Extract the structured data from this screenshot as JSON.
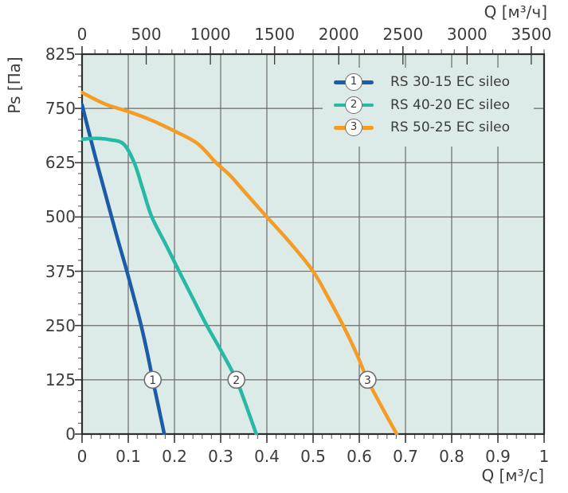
{
  "colors": {
    "plot_background": "#dcebe8",
    "gridline": "#6b6b6b",
    "axis_border": "#2e2e2e",
    "major_tick": "#3a3a3a",
    "minor_tick": "#5f5f5f",
    "text": "#3c3c3b",
    "marker_circle_border": "#6f6f6f",
    "series_blue": "#1b5ca8",
    "series_teal": "#26b9a6",
    "series_orange": "#f59c24"
  },
  "axis_titles": {
    "top": "Q [м³/ч]",
    "bottom": "Q [м³/с]",
    "left": "Ps [Па]"
  },
  "legend": {
    "items": [
      {
        "num": "1",
        "label": "RS 30-15 EC sileo",
        "color": "#1b5ca8"
      },
      {
        "num": "2",
        "label": "RS 40-20 EC sileo",
        "color": "#26b9a6"
      },
      {
        "num": "3",
        "label": "RS 50-25 EC sileo",
        "color": "#f59c24"
      }
    ]
  },
  "chart_data": {
    "type": "line",
    "title": "",
    "xlabel": "Q [м³/с]",
    "xlabel_top": "Q [м³/ч]",
    "ylabel": "Ps [Па]",
    "xlim": [
      0,
      1
    ],
    "xlim_top": [
      0,
      3600
    ],
    "ylim": [
      0,
      825
    ],
    "grid": true,
    "legend_position": "top-right",
    "x_ticks_bottom": [
      "0",
      "0.1",
      "0.2",
      "0.3",
      "0.4",
      "0.5",
      "0.6",
      "0.7",
      "0.8",
      "0.9",
      "1"
    ],
    "x_ticks_top": [
      "0",
      "500",
      "1000",
      "1500",
      "2000",
      "2500",
      "3000",
      "3500"
    ],
    "y_ticks": [
      "825",
      "750",
      "625",
      "500",
      "375",
      "250",
      "125",
      "0"
    ],
    "series": [
      {
        "name": "RS 30-15 EC sileo",
        "curve_number": "1",
        "color": "#1b5ca8",
        "points": [
          [
            0,
            755
          ],
          [
            0.015,
            695
          ],
          [
            0.032,
            625
          ],
          [
            0.048,
            563
          ],
          [
            0.064,
            500
          ],
          [
            0.08,
            438
          ],
          [
            0.097,
            375
          ],
          [
            0.113,
            312
          ],
          [
            0.128,
            250
          ],
          [
            0.141,
            188
          ],
          [
            0.153,
            125
          ],
          [
            0.166,
            60
          ],
          [
            0.178,
            0
          ]
        ]
      },
      {
        "name": "RS 40-20 EC sileo",
        "curve_number": "2",
        "color": "#26b9a6",
        "points": [
          [
            0,
            679
          ],
          [
            0.03,
            681
          ],
          [
            0.06,
            678
          ],
          [
            0.09,
            668
          ],
          [
            0.113,
            625
          ],
          [
            0.132,
            562
          ],
          [
            0.151,
            500
          ],
          [
            0.181,
            437
          ],
          [
            0.21,
            375
          ],
          [
            0.24,
            312
          ],
          [
            0.27,
            250
          ],
          [
            0.303,
            188
          ],
          [
            0.334,
            125
          ],
          [
            0.357,
            60
          ],
          [
            0.377,
            0
          ]
        ]
      },
      {
        "name": "RS 50-25 EC sileo",
        "curve_number": "3",
        "color": "#f59c24",
        "points": [
          [
            0,
            772
          ],
          [
            0.05,
            756
          ],
          [
            0.1,
            743
          ],
          [
            0.15,
            723
          ],
          [
            0.2,
            698
          ],
          [
            0.25,
            669
          ],
          [
            0.29,
            625
          ],
          [
            0.32,
            596
          ],
          [
            0.35,
            560
          ],
          [
            0.4,
            500
          ],
          [
            0.45,
            441
          ],
          [
            0.5,
            375
          ],
          [
            0.535,
            310
          ],
          [
            0.565,
            250
          ],
          [
            0.593,
            188
          ],
          [
            0.618,
            125
          ],
          [
            0.65,
            60
          ],
          [
            0.681,
            0
          ]
        ]
      }
    ],
    "curve_markers": [
      {
        "num": "1",
        "q": 0.153,
        "ps": 125
      },
      {
        "num": "2",
        "q": 0.334,
        "ps": 125
      },
      {
        "num": "3",
        "q": 0.618,
        "ps": 125
      }
    ]
  }
}
